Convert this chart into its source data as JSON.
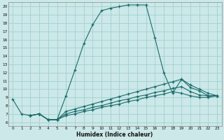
{
  "xlabel": "Humidex (Indice chaleur)",
  "background_color": "#cce8e8",
  "grid_color": "#99cccc",
  "line_color": "#1a6b6b",
  "xlim": [
    -0.5,
    23.5
  ],
  "ylim": [
    5.5,
    20.5
  ],
  "xticks": [
    0,
    1,
    2,
    3,
    4,
    5,
    6,
    7,
    8,
    9,
    10,
    11,
    12,
    13,
    14,
    15,
    16,
    17,
    18,
    19,
    20,
    21,
    22,
    23
  ],
  "yticks": [
    6,
    7,
    8,
    9,
    10,
    11,
    12,
    13,
    14,
    15,
    16,
    17,
    18,
    19,
    20
  ],
  "curve1_x": [
    0,
    1,
    2,
    3,
    4,
    5,
    6,
    7,
    8,
    9,
    10,
    11,
    12,
    13,
    14,
    15,
    16,
    17,
    18,
    19,
    20,
    21,
    22,
    23
  ],
  "curve1_y": [
    8.8,
    7.0,
    6.8,
    7.0,
    6.3,
    6.3,
    9.2,
    12.3,
    15.5,
    17.8,
    19.5,
    19.8,
    20.0,
    20.2,
    20.2,
    20.2,
    16.2,
    12.0,
    9.5,
    11.2,
    10.2,
    9.8,
    9.2,
    9.2
  ],
  "curve2_x": [
    2,
    3,
    4,
    5,
    6,
    7,
    8,
    9,
    10,
    11,
    12,
    13,
    14,
    15,
    16,
    17,
    18,
    19,
    20,
    21,
    22,
    23
  ],
  "curve2_y": [
    6.8,
    7.0,
    6.3,
    6.3,
    7.3,
    7.6,
    7.9,
    8.2,
    8.5,
    8.8,
    9.1,
    9.4,
    9.7,
    10.0,
    10.3,
    10.6,
    10.9,
    11.2,
    10.5,
    10.0,
    9.5,
    9.2
  ],
  "curve3_x": [
    2,
    3,
    4,
    5,
    6,
    7,
    8,
    9,
    10,
    11,
    12,
    13,
    14,
    15,
    16,
    17,
    18,
    19,
    20,
    21,
    22,
    23
  ],
  "curve3_y": [
    6.8,
    7.0,
    6.3,
    6.3,
    7.0,
    7.3,
    7.5,
    7.8,
    8.0,
    8.3,
    8.6,
    8.8,
    9.1,
    9.3,
    9.6,
    9.8,
    10.1,
    10.3,
    9.7,
    9.3,
    9.2,
    9.2
  ],
  "curve4_x": [
    2,
    3,
    4,
    5,
    6,
    7,
    8,
    9,
    10,
    11,
    12,
    13,
    14,
    15,
    16,
    17,
    18,
    19,
    20,
    21,
    22,
    23
  ],
  "curve4_y": [
    6.8,
    7.0,
    6.3,
    6.3,
    6.8,
    7.0,
    7.3,
    7.5,
    7.8,
    8.0,
    8.2,
    8.5,
    8.7,
    9.0,
    9.2,
    9.4,
    9.7,
    9.5,
    9.2,
    9.0,
    9.0,
    9.2
  ]
}
